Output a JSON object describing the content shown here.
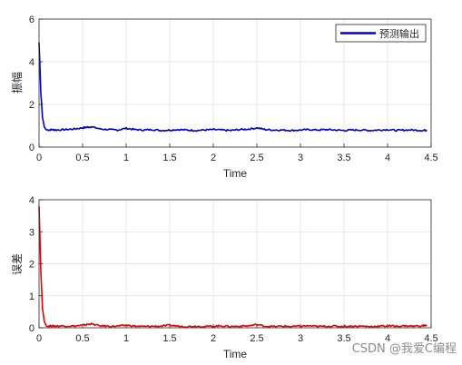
{
  "chart_data": [
    {
      "type": "line",
      "color": "#0000cc",
      "xlabel": "Time",
      "ylabel": "振幅",
      "xlim": [
        0,
        4.5
      ],
      "ylim": [
        0,
        6
      ],
      "xticks": [
        0,
        0.5,
        1,
        1.5,
        2,
        2.5,
        3,
        3.5,
        4,
        4.5
      ],
      "yticks": [
        0,
        2,
        4,
        6
      ],
      "xtick_labels": [
        "0",
        "0.5",
        "1",
        "1.5",
        "2",
        "2.5",
        "3",
        "3.5",
        "4",
        "4.5"
      ],
      "ytick_labels": [
        "0",
        "2",
        "4",
        "6"
      ],
      "grid": true,
      "legend_position": "top-right",
      "series": [
        {
          "name": "预测输出",
          "x": [
            0,
            0.02,
            0.04,
            0.06,
            0.08,
            0.1,
            0.15,
            0.2,
            0.3,
            0.4,
            0.5,
            0.55,
            0.6,
            0.7,
            0.8,
            0.9,
            1.0,
            1.1,
            1.2,
            1.3,
            1.4,
            1.5,
            1.6,
            1.7,
            1.8,
            1.9,
            2.0,
            2.1,
            2.2,
            2.3,
            2.4,
            2.5,
            2.6,
            2.7,
            2.8,
            2.9,
            3.0,
            3.1,
            3.2,
            3.3,
            3.4,
            3.5,
            3.6,
            3.7,
            3.8,
            3.9,
            4.0,
            4.1,
            4.2,
            4.3,
            4.4,
            4.45
          ],
          "y": [
            4.9,
            2.6,
            1.4,
            0.95,
            0.82,
            0.8,
            0.82,
            0.8,
            0.82,
            0.85,
            0.9,
            0.93,
            0.95,
            0.85,
            0.82,
            0.8,
            0.88,
            0.82,
            0.8,
            0.82,
            0.78,
            0.8,
            0.82,
            0.8,
            0.78,
            0.8,
            0.82,
            0.8,
            0.78,
            0.82,
            0.84,
            0.9,
            0.82,
            0.8,
            0.8,
            0.78,
            0.8,
            0.82,
            0.8,
            0.82,
            0.8,
            0.78,
            0.8,
            0.8,
            0.78,
            0.8,
            0.82,
            0.78,
            0.8,
            0.8,
            0.78,
            0.8
          ]
        }
      ]
    },
    {
      "type": "line",
      "color": "#e60000",
      "xlabel": "Time",
      "ylabel": "误差",
      "xlim": [
        0,
        4.5
      ],
      "ylim": [
        0,
        4
      ],
      "xticks": [
        0,
        0.5,
        1,
        1.5,
        2,
        2.5,
        3,
        3.5,
        4,
        4.5
      ],
      "yticks": [
        0,
        1,
        2,
        3,
        4
      ],
      "xtick_labels": [
        "0",
        "0.5",
        "1",
        "1.5",
        "2",
        "2.5",
        "3",
        "3.5",
        "4",
        "4.5"
      ],
      "ytick_labels": [
        "0",
        "1",
        "2",
        "3",
        "4"
      ],
      "grid": true,
      "series": [
        {
          "x": [
            0,
            0.02,
            0.04,
            0.06,
            0.08,
            0.1,
            0.15,
            0.2,
            0.3,
            0.4,
            0.5,
            0.55,
            0.6,
            0.7,
            0.8,
            0.9,
            1.0,
            1.1,
            1.2,
            1.3,
            1.4,
            1.5,
            1.6,
            1.7,
            1.8,
            1.9,
            2.0,
            2.1,
            2.2,
            2.3,
            2.4,
            2.5,
            2.6,
            2.7,
            2.8,
            2.9,
            3.0,
            3.1,
            3.2,
            3.3,
            3.4,
            3.5,
            3.6,
            3.7,
            3.8,
            3.9,
            4.0,
            4.1,
            4.2,
            4.3,
            4.4,
            4.45
          ],
          "y": [
            3.8,
            1.8,
            0.6,
            0.2,
            0.08,
            0.05,
            0.06,
            0.05,
            0.06,
            0.05,
            0.08,
            0.1,
            0.12,
            0.06,
            0.05,
            0.05,
            0.08,
            0.05,
            0.04,
            0.05,
            0.05,
            0.08,
            0.05,
            0.04,
            0.05,
            0.04,
            0.05,
            0.06,
            0.04,
            0.05,
            0.06,
            0.1,
            0.05,
            0.04,
            0.05,
            0.04,
            0.05,
            0.06,
            0.04,
            0.05,
            0.05,
            0.04,
            0.05,
            0.05,
            0.04,
            0.05,
            0.06,
            0.05,
            0.06,
            0.05,
            0.06,
            0.08
          ]
        }
      ]
    }
  ],
  "watermark": "CSDN @我爱C编程"
}
